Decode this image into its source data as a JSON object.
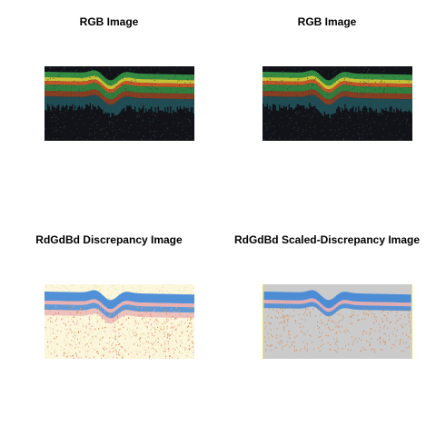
{
  "panels": [
    {
      "title": "RGB Image",
      "kind": "rgb"
    },
    {
      "title": "RGB Image",
      "kind": "rgb"
    },
    {
      "title": "RdGdBd Discrepancy Image",
      "kind": "discrepancy"
    },
    {
      "title": "RdGdBd Scaled-Discrepancy Image",
      "kind": "scaled"
    }
  ],
  "colors": {
    "rgb_background": "#111318",
    "rgb_green": "#3aa04a",
    "rgb_yellow": "#d6d43a",
    "rgb_orange": "#e0602a",
    "rgb_teal": "#2a6f7a",
    "disc_background": "#fbf6dc",
    "disc_blue": "#3f86d6",
    "disc_pink": "#e7a0a8",
    "disc_orange": "#d9884e",
    "scaled_background": "#cbcbcb",
    "scaled_edge": "#e6e26a"
  }
}
